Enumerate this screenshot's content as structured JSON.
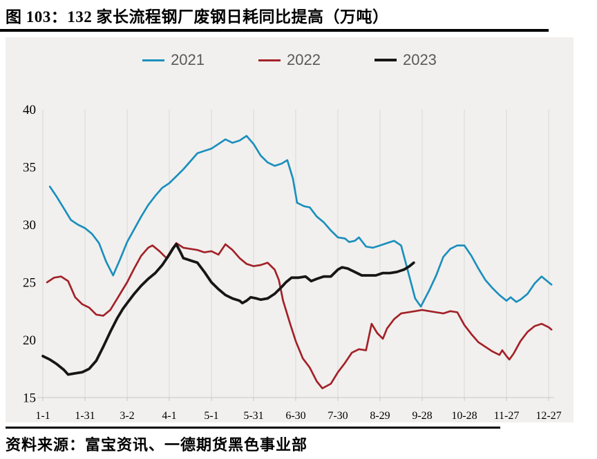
{
  "header": {
    "title": "图 103：132 家长流程钢厂废钢日耗同比提高（万吨）"
  },
  "footer": {
    "source": "资料来源：富宝资讯、一德期货黑色事业部"
  },
  "colors": {
    "panel_background": "#f1f0ee",
    "gridline": "#d8d8d8",
    "axis_line": "#c6c6c6",
    "legend_text": "#595959",
    "series_2021": "#1b8fbd",
    "series_2022": "#a32128",
    "series_2023": "#161616"
  },
  "chart_data": {
    "type": "line",
    "title": "132 家长流程钢厂废钢日耗同比提高（万吨）",
    "unit": "万吨",
    "grid": "vertical-only",
    "legend_position": "top-center",
    "x_axis": {
      "tick_days": [
        1,
        31,
        61,
        91,
        121,
        151,
        181,
        211,
        241,
        271,
        301,
        331,
        361
      ],
      "tick_labels": [
        "1-1",
        "1-31",
        "3-2",
        "4-1",
        "5-1",
        "5-31",
        "6-30",
        "7-30",
        "8-29",
        "9-28",
        "10-28",
        "11-27",
        "12-27"
      ],
      "day_range": [
        1,
        365
      ]
    },
    "y_axis": {
      "min": 15,
      "max": 40,
      "step": 5,
      "ticks": [
        15,
        20,
        25,
        30,
        35,
        40
      ]
    },
    "series": [
      {
        "name": "2021",
        "color": "#1b8fbd",
        "stroke_width": 2.7,
        "points": [
          [
            6,
            33.3
          ],
          [
            11,
            32.4
          ],
          [
            16,
            31.4
          ],
          [
            21,
            30.4
          ],
          [
            26,
            30.0
          ],
          [
            31,
            29.7
          ],
          [
            36,
            29.2
          ],
          [
            41,
            28.4
          ],
          [
            46,
            26.8
          ],
          [
            51,
            25.6
          ],
          [
            56,
            27.0
          ],
          [
            61,
            28.5
          ],
          [
            66,
            29.6
          ],
          [
            71,
            30.7
          ],
          [
            76,
            31.7
          ],
          [
            81,
            32.5
          ],
          [
            86,
            33.2
          ],
          [
            91,
            33.6
          ],
          [
            96,
            34.2
          ],
          [
            101,
            34.8
          ],
          [
            106,
            35.5
          ],
          [
            111,
            36.2
          ],
          [
            116,
            36.4
          ],
          [
            121,
            36.6
          ],
          [
            126,
            37.0
          ],
          [
            131,
            37.4
          ],
          [
            136,
            37.1
          ],
          [
            141,
            37.3
          ],
          [
            146,
            37.7
          ],
          [
            151,
            37.0
          ],
          [
            156,
            36.0
          ],
          [
            161,
            35.4
          ],
          [
            166,
            35.1
          ],
          [
            171,
            35.3
          ],
          [
            175,
            35.6
          ],
          [
            179,
            34.0
          ],
          [
            182,
            31.9
          ],
          [
            187,
            31.6
          ],
          [
            191,
            31.5
          ],
          [
            196,
            30.7
          ],
          [
            201,
            30.2
          ],
          [
            206,
            29.5
          ],
          [
            211,
            28.9
          ],
          [
            216,
            28.8
          ],
          [
            219,
            28.5
          ],
          [
            223,
            28.6
          ],
          [
            226,
            28.9
          ],
          [
            231,
            28.1
          ],
          [
            236,
            28.0
          ],
          [
            241,
            28.2
          ],
          [
            246,
            28.4
          ],
          [
            251,
            28.6
          ],
          [
            256,
            28.2
          ],
          [
            261,
            25.9
          ],
          [
            266,
            23.6
          ],
          [
            270,
            22.9
          ],
          [
            276,
            24.3
          ],
          [
            281,
            25.6
          ],
          [
            286,
            27.2
          ],
          [
            291,
            27.9
          ],
          [
            296,
            28.2
          ],
          [
            301,
            28.2
          ],
          [
            306,
            27.3
          ],
          [
            311,
            26.2
          ],
          [
            316,
            25.2
          ],
          [
            321,
            24.5
          ],
          [
            326,
            23.9
          ],
          [
            331,
            23.4
          ],
          [
            334,
            23.7
          ],
          [
            338,
            23.3
          ],
          [
            341,
            23.5
          ],
          [
            346,
            24.0
          ],
          [
            351,
            24.9
          ],
          [
            356,
            25.5
          ],
          [
            361,
            25.0
          ],
          [
            363,
            24.8
          ]
        ]
      },
      {
        "name": "2022",
        "color": "#a32128",
        "stroke_width": 2.7,
        "points": [
          [
            4,
            25.0
          ],
          [
            9,
            25.4
          ],
          [
            14,
            25.5
          ],
          [
            19,
            25.1
          ],
          [
            24,
            23.7
          ],
          [
            29,
            23.1
          ],
          [
            34,
            22.8
          ],
          [
            39,
            22.2
          ],
          [
            44,
            22.1
          ],
          [
            49,
            22.6
          ],
          [
            54,
            23.6
          ],
          [
            58,
            24.4
          ],
          [
            61,
            25.0
          ],
          [
            66,
            26.2
          ],
          [
            71,
            27.3
          ],
          [
            76,
            28.0
          ],
          [
            79,
            28.2
          ],
          [
            84,
            27.7
          ],
          [
            89,
            27.1
          ],
          [
            93,
            27.9
          ],
          [
            96,
            28.4
          ],
          [
            101,
            28.0
          ],
          [
            106,
            27.9
          ],
          [
            111,
            27.8
          ],
          [
            116,
            27.6
          ],
          [
            121,
            27.7
          ],
          [
            126,
            27.4
          ],
          [
            131,
            28.3
          ],
          [
            136,
            27.8
          ],
          [
            141,
            27.1
          ],
          [
            146,
            26.6
          ],
          [
            151,
            26.4
          ],
          [
            156,
            26.5
          ],
          [
            161,
            26.7
          ],
          [
            166,
            26.1
          ],
          [
            169,
            25.2
          ],
          [
            172,
            23.4
          ],
          [
            177,
            21.4
          ],
          [
            181,
            19.9
          ],
          [
            186,
            18.4
          ],
          [
            191,
            17.6
          ],
          [
            196,
            16.4
          ],
          [
            200,
            15.8
          ],
          [
            206,
            16.2
          ],
          [
            211,
            17.2
          ],
          [
            216,
            18.0
          ],
          [
            221,
            18.9
          ],
          [
            226,
            19.2
          ],
          [
            231,
            19.1
          ],
          [
            235,
            21.4
          ],
          [
            239,
            20.6
          ],
          [
            243,
            20.1
          ],
          [
            246,
            21.0
          ],
          [
            251,
            21.8
          ],
          [
            256,
            22.3
          ],
          [
            261,
            22.4
          ],
          [
            266,
            22.5
          ],
          [
            271,
            22.6
          ],
          [
            276,
            22.5
          ],
          [
            281,
            22.4
          ],
          [
            286,
            22.3
          ],
          [
            291,
            22.5
          ],
          [
            296,
            22.4
          ],
          [
            301,
            21.3
          ],
          [
            306,
            20.5
          ],
          [
            311,
            19.8
          ],
          [
            316,
            19.4
          ],
          [
            321,
            19.0
          ],
          [
            326,
            18.7
          ],
          [
            328,
            19.1
          ],
          [
            331,
            18.6
          ],
          [
            333,
            18.3
          ],
          [
            336,
            18.8
          ],
          [
            341,
            19.9
          ],
          [
            346,
            20.7
          ],
          [
            351,
            21.2
          ],
          [
            356,
            21.4
          ],
          [
            361,
            21.1
          ],
          [
            363,
            20.9
          ]
        ]
      },
      {
        "name": "2023",
        "color": "#161616",
        "stroke_width": 3.8,
        "points": [
          [
            1,
            18.6
          ],
          [
            6,
            18.3
          ],
          [
            11,
            17.9
          ],
          [
            16,
            17.4
          ],
          [
            19,
            17.0
          ],
          [
            24,
            17.1
          ],
          [
            29,
            17.2
          ],
          [
            34,
            17.5
          ],
          [
            39,
            18.2
          ],
          [
            44,
            19.4
          ],
          [
            49,
            20.7
          ],
          [
            54,
            21.9
          ],
          [
            58,
            22.7
          ],
          [
            61,
            23.2
          ],
          [
            66,
            24.0
          ],
          [
            71,
            24.7
          ],
          [
            76,
            25.3
          ],
          [
            81,
            25.8
          ],
          [
            86,
            26.5
          ],
          [
            91,
            27.4
          ],
          [
            94,
            28.0
          ],
          [
            96,
            28.3
          ],
          [
            99,
            27.6
          ],
          [
            101,
            27.1
          ],
          [
            106,
            26.9
          ],
          [
            111,
            26.7
          ],
          [
            116,
            25.9
          ],
          [
            121,
            25.0
          ],
          [
            126,
            24.4
          ],
          [
            131,
            23.9
          ],
          [
            136,
            23.6
          ],
          [
            141,
            23.4
          ],
          [
            143,
            23.2
          ],
          [
            146,
            23.4
          ],
          [
            149,
            23.7
          ],
          [
            153,
            23.6
          ],
          [
            156,
            23.5
          ],
          [
            161,
            23.6
          ],
          [
            166,
            24.0
          ],
          [
            171,
            24.6
          ],
          [
            174,
            25.0
          ],
          [
            178,
            25.4
          ],
          [
            183,
            25.4
          ],
          [
            188,
            25.5
          ],
          [
            192,
            25.1
          ],
          [
            196,
            25.3
          ],
          [
            201,
            25.5
          ],
          [
            206,
            25.5
          ],
          [
            211,
            26.1
          ],
          [
            214,
            26.3
          ],
          [
            218,
            26.2
          ],
          [
            223,
            25.9
          ],
          [
            228,
            25.6
          ],
          [
            233,
            25.6
          ],
          [
            238,
            25.6
          ],
          [
            243,
            25.8
          ],
          [
            248,
            25.8
          ],
          [
            253,
            25.9
          ],
          [
            258,
            26.1
          ],
          [
            262,
            26.4
          ],
          [
            265,
            26.7
          ]
        ]
      }
    ]
  }
}
